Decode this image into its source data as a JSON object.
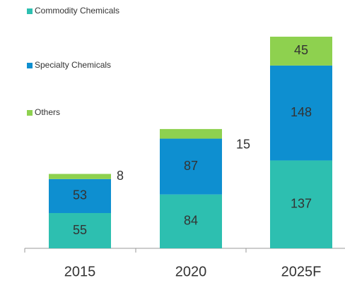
{
  "chart_data": {
    "type": "stacked_bar",
    "categories": [
      "2015",
      "2020",
      "2025F"
    ],
    "series": [
      {
        "name": "Commodity Chemicals",
        "color": "#2dbfb0",
        "values": [
          55,
          84,
          137
        ]
      },
      {
        "name": "Specialty Chemicals",
        "color": "#0e8fd0",
        "values": [
          53,
          87,
          148
        ]
      },
      {
        "name": "Others",
        "color": "#8ed14f",
        "values": [
          8,
          15,
          45
        ]
      }
    ],
    "legend": "top-left"
  }
}
